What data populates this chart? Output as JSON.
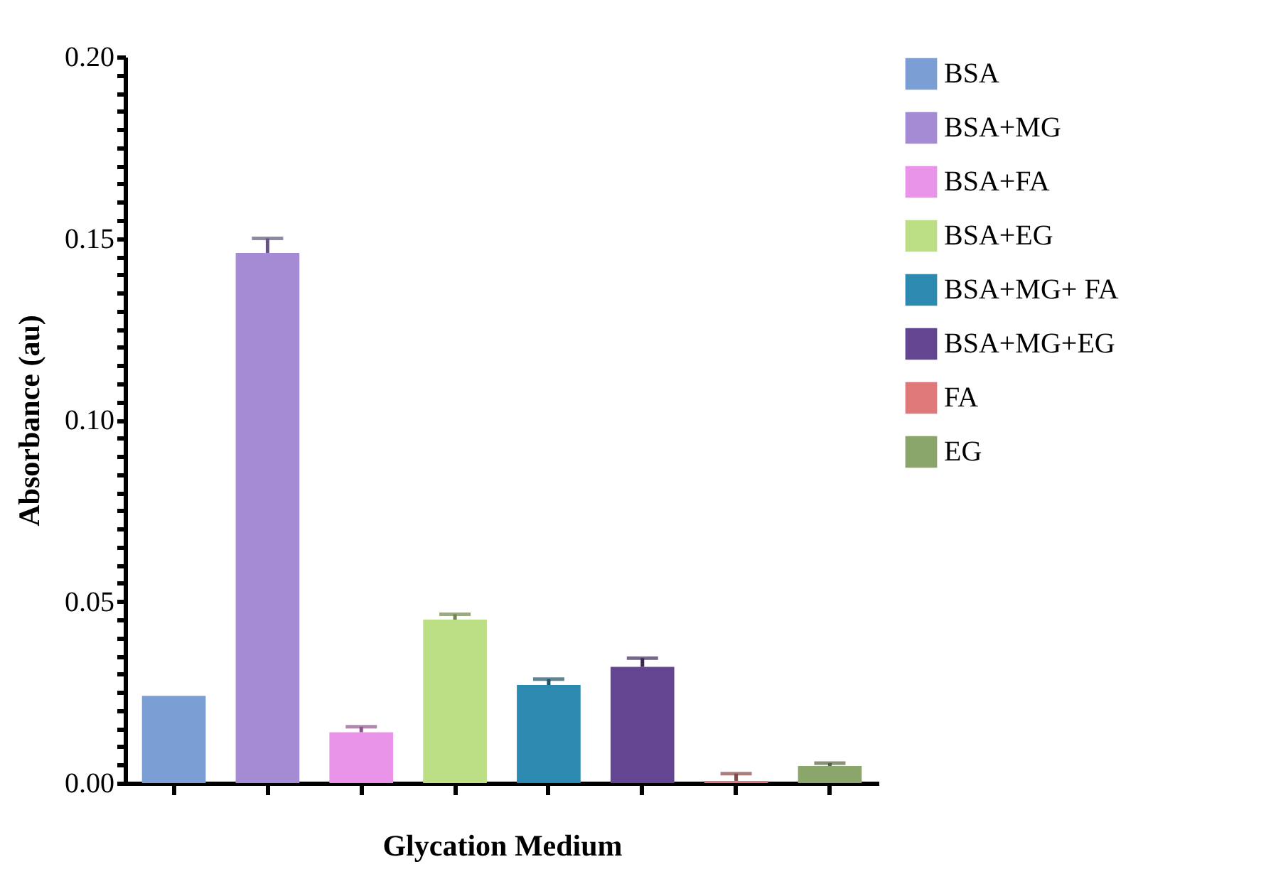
{
  "chart_data": {
    "type": "bar",
    "xlabel": "Glycation Medium",
    "ylabel": "Absorbance (au)",
    "categories": [
      null,
      null,
      null,
      null,
      null,
      null,
      null,
      null
    ],
    "series": [
      {
        "name": "BSA",
        "color": "#7b9fd4",
        "values": [
          0.024,
          null,
          null,
          null,
          null,
          null,
          null,
          null
        ]
      },
      {
        "name": "BSA+MG",
        "color": "#a58bd3",
        "values": [
          null,
          0.146,
          null,
          null,
          null,
          null,
          null,
          null
        ],
        "errors": [
          null,
          0.004,
          null,
          null,
          null,
          null,
          null,
          null
        ]
      },
      {
        "name": "BSA+FA",
        "color": "#e994e9",
        "values": [
          null,
          null,
          0.014,
          null,
          null,
          null,
          null,
          null
        ],
        "errors": [
          null,
          null,
          0.0015,
          null,
          null,
          null,
          null,
          null
        ]
      },
      {
        "name": "BSA+EG",
        "color": "#bcdf86",
        "values": [
          null,
          null,
          null,
          0.045,
          null,
          null,
          null,
          null
        ],
        "errors": [
          null,
          null,
          null,
          0.0015,
          null,
          null,
          null,
          null
        ]
      },
      {
        "name": "BSA+MG+ FA",
        "color": "#2c89b0",
        "values": [
          null,
          null,
          null,
          null,
          0.027,
          null,
          null,
          null
        ],
        "errors": [
          null,
          null,
          null,
          null,
          0.0016,
          null,
          null,
          null
        ]
      },
      {
        "name": "BSA+MG+EG",
        "color": "#634592",
        "values": [
          null,
          null,
          null,
          null,
          null,
          0.032,
          null,
          null
        ],
        "errors": [
          null,
          null,
          null,
          null,
          null,
          0.0024,
          null,
          null
        ]
      },
      {
        "name": "FA",
        "color": "#e07a7a",
        "values": [
          null,
          null,
          null,
          null,
          null,
          null,
          0.0006,
          null
        ],
        "errors": [
          null,
          null,
          null,
          null,
          null,
          null,
          0.002,
          null
        ]
      },
      {
        "name": "EG",
        "color": "#8aa66a",
        "values": [
          null,
          null,
          null,
          null,
          null,
          null,
          null,
          0.0047
        ],
        "errors": [
          null,
          null,
          null,
          null,
          null,
          null,
          null,
          0.0008
        ]
      }
    ],
    "ylim": [
      0,
      0.2
    ],
    "yticks": [
      "0.00",
      {
        "value": 0.005,
        "label": null
      },
      {
        "value": 0.01,
        "label": null
      },
      {
        "value": 0.015,
        "label": null
      },
      {
        "value": 0.02,
        "label": null
      },
      {
        "value": 0.025,
        "label": null
      },
      {
        "value": 0.03,
        "label": null
      },
      {
        "value": 0.035,
        "label": null
      },
      {
        "value": 0.04,
        "label": null
      },
      {
        "value": 0.045,
        "label": null
      },
      {
        "value": 0.05,
        "label": "0.05"
      },
      {
        "value": 0.055,
        "label": null
      },
      {
        "value": 0.06,
        "label": null
      },
      {
        "value": 0.065,
        "label": null
      },
      {
        "value": 0.07,
        "label": null
      },
      {
        "value": 0.075,
        "label": null
      },
      {
        "value": 0.08,
        "label": null
      },
      {
        "value": 0.085,
        "label": null
      },
      {
        "value": 0.09,
        "label": null
      },
      {
        "value": 0.095,
        "label": null
      },
      {
        "value": 0.1,
        "label": "0.10"
      },
      {
        "value": 0.105,
        "label": null
      },
      {
        "value": 0.11,
        "label": null
      },
      {
        "value": 0.115,
        "label": null
      },
      {
        "value": 0.12,
        "label": null
      },
      {
        "value": 0.125,
        "label": null
      },
      {
        "value": 0.13,
        "label": null
      },
      {
        "value": 0.135,
        "label": null
      },
      {
        "value": 0.14,
        "label": null
      },
      {
        "value": 0.145,
        "label": null
      },
      {
        "value": 0.15,
        "label": "0.15"
      },
      {
        "value": 0.155,
        "label": null
      },
      {
        "value": 0.16,
        "label": null
      },
      {
        "value": 0.165,
        "label": null
      },
      {
        "value": 0.17,
        "label": null
      },
      {
        "value": 0.175,
        "label": null
      },
      {
        "value": 0.18,
        "label": null
      },
      {
        "value": 0.185,
        "label": null
      },
      {
        "value": 0.19,
        "label": null
      },
      {
        "value": 0.195,
        "label": null
      },
      {
        "value": 0.2,
        "label": "0.20"
      }
    ],
    "legend": "top right",
    "grid": false,
    "tick_labels": "y"
  }
}
